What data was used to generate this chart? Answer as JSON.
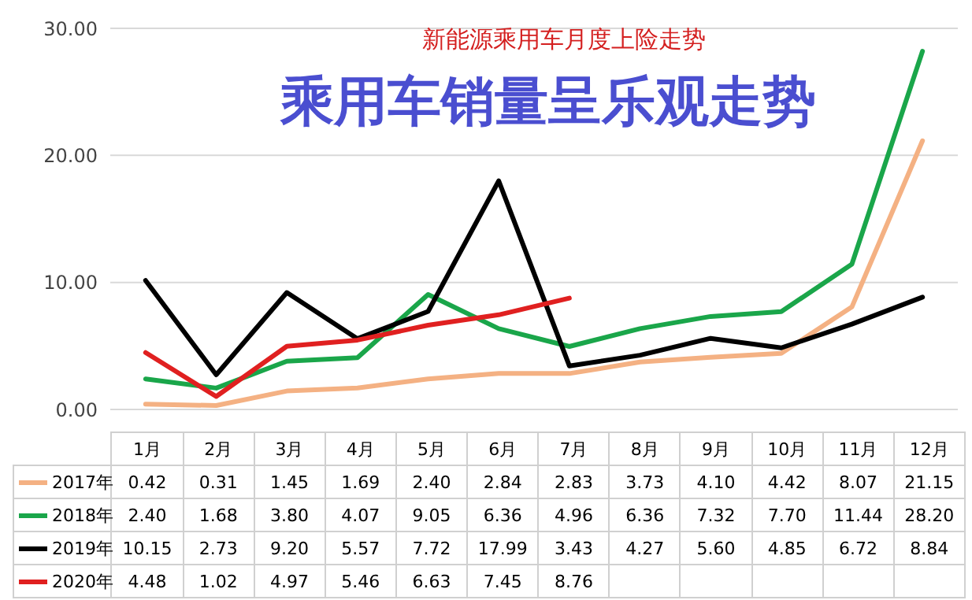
{
  "chart_data": {
    "type": "line",
    "title": "新能源乘用车月度上险走势",
    "subtitle": "乘用车销量呈乐观走势",
    "categories": [
      "1月",
      "2月",
      "3月",
      "4月",
      "5月",
      "6月",
      "7月",
      "8月",
      "9月",
      "10月",
      "11月",
      "12月"
    ],
    "series": [
      {
        "name": "2017年",
        "color": "#f4b183",
        "values": [
          0.42,
          0.31,
          1.45,
          1.69,
          2.4,
          2.84,
          2.83,
          3.73,
          4.1,
          4.42,
          8.07,
          21.15
        ],
        "value_labels": [
          "0.42",
          "0.31",
          "1.45",
          "1.69",
          "2.40",
          "2.84",
          "2.83",
          "3.73",
          "4.10",
          "4.42",
          "8.07",
          "21.15"
        ]
      },
      {
        "name": "2018年",
        "color": "#1aa64a",
        "values": [
          2.4,
          1.68,
          3.8,
          4.07,
          9.05,
          6.36,
          4.96,
          6.36,
          7.32,
          7.7,
          11.44,
          28.2
        ],
        "value_labels": [
          "2.40",
          "1.68",
          "3.80",
          "4.07",
          "9.05",
          "6.36",
          "4.96",
          "6.36",
          "7.32",
          "7.70",
          "11.44",
          "28.20"
        ]
      },
      {
        "name": "2019年",
        "color": "#000000",
        "values": [
          10.15,
          2.73,
          9.2,
          5.57,
          7.72,
          17.99,
          3.43,
          4.27,
          5.6,
          4.85,
          6.72,
          8.84
        ],
        "value_labels": [
          "10.15",
          "2.73",
          "9.20",
          "5.57",
          "7.72",
          "17.99",
          "3.43",
          "4.27",
          "5.60",
          "4.85",
          "6.72",
          "8.84"
        ]
      },
      {
        "name": "2020年",
        "color": "#e02020",
        "values": [
          4.48,
          1.02,
          4.97,
          5.46,
          6.63,
          7.45,
          8.76,
          null,
          null,
          null,
          null,
          null
        ],
        "value_labels": [
          "4.48",
          "1.02",
          "4.97",
          "5.46",
          "6.63",
          "7.45",
          "8.76",
          null,
          null,
          null,
          null,
          null
        ]
      }
    ],
    "ylim": [
      0,
      30
    ],
    "yticks": [
      {
        "value": 0,
        "label": "0.00"
      },
      {
        "value": 10,
        "label": "10.00"
      },
      {
        "value": 20,
        "label": "20.00"
      },
      {
        "value": 30,
        "label": "30.00"
      }
    ],
    "grid": "y",
    "legend": "bottom",
    "marker": "none",
    "line_style": "solid"
  }
}
